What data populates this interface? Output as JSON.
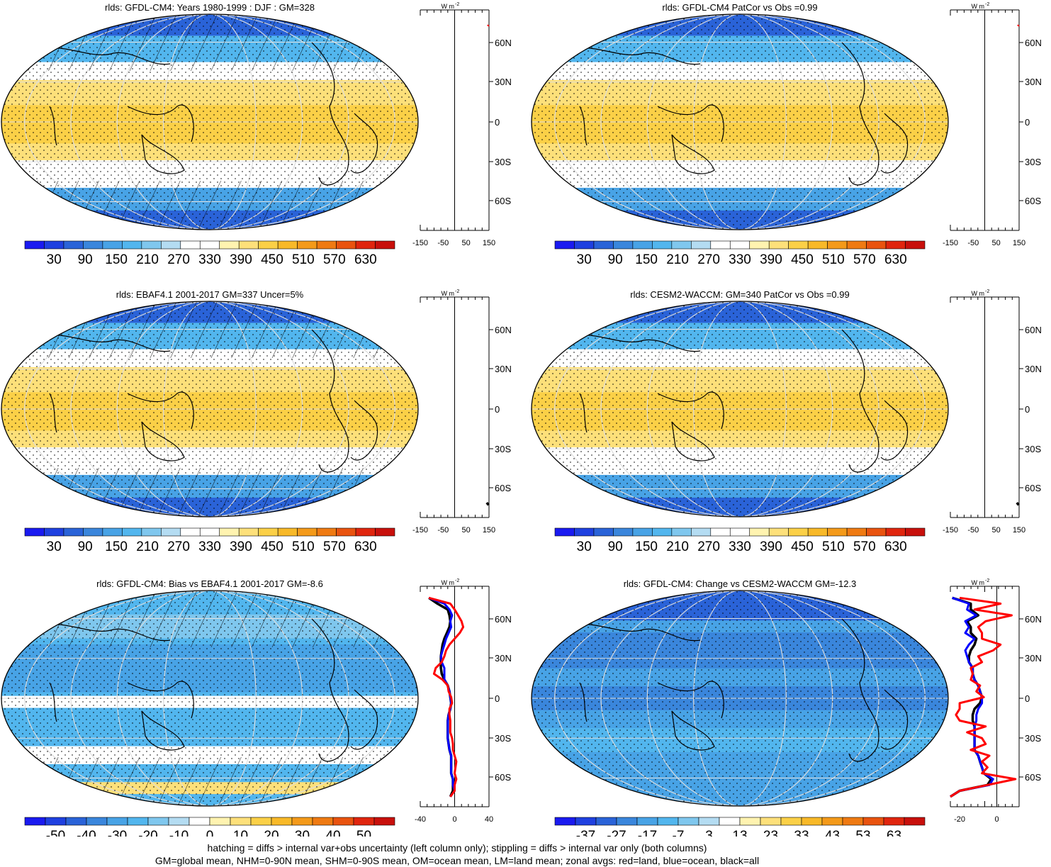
{
  "colors": {
    "abs_scale": [
      "#1a1af0",
      "#1f40e0",
      "#2a63d8",
      "#3a86dc",
      "#48a3e6",
      "#52b6ee",
      "#7fc7ee",
      "#b4dcf2",
      "#ffffff",
      "#ffffff",
      "#fff3b0",
      "#fde07a",
      "#fbd047",
      "#f8b928",
      "#f49a1a",
      "#ef7a12",
      "#e9530f",
      "#e0250e",
      "#c8100c"
    ],
    "bias_scale": [
      "#1a1af0",
      "#1f40e0",
      "#2a63d8",
      "#3a86dc",
      "#48a3e6",
      "#52b6ee",
      "#7fc7ee",
      "#b4dcf2",
      "#ffffff",
      "#fff3b0",
      "#fde07a",
      "#fbd047",
      "#f8b928",
      "#f49a1a",
      "#ef7a12",
      "#e9530f",
      "#e0250e",
      "#c8100c"
    ],
    "change_scale": [
      "#1a1af0",
      "#1f40e0",
      "#2a63d8",
      "#3a86dc",
      "#48a3e6",
      "#52b6ee",
      "#7fc7ee",
      "#b4dcf2",
      "#ffffff",
      "#fff3b0",
      "#fde07a",
      "#fbd047",
      "#f8b928",
      "#f49a1a",
      "#ef7a12",
      "#e9530f",
      "#e0250e",
      "#c8100c"
    ],
    "land": "#ff0000",
    "ocean": "#0000ff",
    "all": "#000000"
  },
  "chart_data": [
    {
      "type": "heatmap",
      "title": "rlds: GFDL-CM4: Years 1980-1999 : DJF : GM=328",
      "colorbar_labels": [
        "30",
        "90",
        "150",
        "210",
        "270",
        "330",
        "390",
        "450",
        "510",
        "570",
        "630"
      ],
      "colorbar_scale": "abs",
      "lat_labels": [
        "60N",
        "30N",
        "0",
        "30S",
        "60S"
      ],
      "zonal": {
        "unit": "W m-2",
        "x_ticks": [
          "-150",
          "-50",
          "50",
          "150"
        ],
        "xlim": [
          -150,
          150
        ],
        "lat": [
          82,
          81
        ],
        "land": [
          148,
          145
        ]
      }
    },
    {
      "type": "heatmap",
      "title": "rlds: GFDL-CM4 PatCor vs Obs =0.99",
      "colorbar_labels": [
        "30",
        "90",
        "150",
        "210",
        "270",
        "330",
        "390",
        "450",
        "510",
        "570",
        "630"
      ],
      "colorbar_scale": "abs",
      "lat_labels": [
        "60N",
        "30N",
        "0",
        "30S",
        "60S"
      ],
      "zonal": {
        "unit": "W m-2",
        "x_ticks": [
          "-150",
          "-50",
          "50",
          "150"
        ],
        "xlim": [
          -150,
          150
        ],
        "lat": [
          82,
          81
        ],
        "land": [
          148,
          145
        ]
      }
    },
    {
      "type": "heatmap",
      "title": "rlds: EBAF4.1 2001-2017 GM=337 Uncer=5%",
      "colorbar_labels": [
        "30",
        "90",
        "150",
        "210",
        "270",
        "330",
        "390",
        "450",
        "510",
        "570",
        "630"
      ],
      "colorbar_scale": "abs",
      "lat_labels": [
        "60N",
        "30N",
        "0",
        "30S",
        "60S"
      ],
      "zonal": {
        "unit": "W m-2",
        "x_ticks": [
          "-150",
          "-50",
          "50",
          "150"
        ],
        "xlim": [
          -150,
          150
        ],
        "lat": [
          -83,
          -81
        ],
        "all": [
          148,
          140
        ]
      }
    },
    {
      "type": "heatmap",
      "title": "rlds: CESM2-WACCM: GM=340 PatCor vs Obs =0.99",
      "colorbar_labels": [
        "30",
        "90",
        "150",
        "210",
        "270",
        "330",
        "390",
        "450",
        "510",
        "570",
        "630"
      ],
      "colorbar_scale": "abs",
      "lat_labels": [
        "60N",
        "30N",
        "0",
        "30S",
        "60S"
      ],
      "zonal": {
        "unit": "W m-2",
        "x_ticks": [
          "-150",
          "-50",
          "50",
          "150"
        ],
        "xlim": [
          -150,
          150
        ],
        "lat": [
          -83,
          -81
        ],
        "all": [
          148,
          140
        ]
      }
    },
    {
      "type": "heatmap",
      "title": "rlds: GFDL-CM4: Bias vs EBAF4.1 2001-2017 GM=-8.6",
      "colorbar_labels": [
        "-50",
        "-40",
        "-30",
        "-20",
        "-10",
        "0",
        "10",
        "20",
        "30",
        "40",
        "50"
      ],
      "colorbar_scale": "bias",
      "lat_labels": [
        "60N",
        "30N",
        "0",
        "30S",
        "60S"
      ],
      "zonal": {
        "unit": "W m-2",
        "x_ticks": [
          "-40",
          "0",
          "40"
        ],
        "xlim": [
          -40,
          40
        ],
        "lat": [
          85,
          80,
          75,
          70,
          65,
          60,
          55,
          50,
          45,
          40,
          35,
          30,
          25,
          20,
          15,
          10,
          5,
          0,
          -5,
          -10,
          -15,
          -20,
          -25,
          -30,
          -35,
          -40,
          -45,
          -50,
          -55,
          -60,
          -65,
          -70,
          -75,
          -80,
          -85
        ],
        "land": [
          -30,
          -5,
          0,
          4,
          8,
          10,
          6,
          0,
          -6,
          -10,
          -12,
          -15,
          -22,
          -24,
          -14,
          -8,
          -7,
          -4,
          -3,
          -6,
          -6,
          -5,
          -5,
          -5,
          -3,
          -2,
          -2,
          0,
          2,
          1,
          0,
          2,
          0,
          0,
          -5
        ],
        "ocean": [
          -30,
          -12,
          -6,
          -3,
          -5,
          -4,
          -7,
          -10,
          -12,
          -14,
          -16,
          -15,
          -12,
          -12,
          -12,
          -8,
          -6,
          -5,
          -4,
          -5,
          -7,
          -8,
          -8,
          -8,
          -8,
          -7,
          -6,
          -4,
          -4,
          -4,
          -4,
          -2,
          -2,
          0,
          -5
        ],
        "all": [
          -30,
          -20,
          -8,
          -6,
          -5,
          -6,
          -9,
          -12,
          -14,
          -15,
          -16,
          -16,
          -16,
          -15,
          -12,
          -8,
          -6,
          -5,
          -4,
          -5,
          -7,
          -8,
          -8,
          -8,
          -8,
          -7,
          -6,
          -4,
          -4,
          -4,
          -4,
          -2,
          -2,
          -2,
          -5
        ]
      }
    },
    {
      "type": "heatmap",
      "title": "rlds: GFDL-CM4: Change vs CESM2-WACCM GM=-12.3",
      "colorbar_labels": [
        "-37",
        "-27",
        "-17",
        "-7",
        "3",
        "13",
        "23",
        "33",
        "43",
        "53",
        "63"
      ],
      "colorbar_scale": "change",
      "lat_labels": [
        "60N",
        "30N",
        "0",
        "30S",
        "60S"
      ],
      "zonal": {
        "unit": "W m-2",
        "x_ticks": [
          "-20",
          "0"
        ],
        "xlim": [
          -25,
          12
        ],
        "lat": [
          85,
          80,
          75,
          70,
          65,
          60,
          55,
          50,
          45,
          40,
          35,
          30,
          25,
          20,
          15,
          10,
          5,
          0,
          -5,
          -10,
          -15,
          -20,
          -25,
          -30,
          -35,
          -40,
          -45,
          -50,
          -55,
          -60,
          -65,
          -70,
          -75,
          -80,
          -85
        ],
        "land": [
          -20,
          2,
          -12,
          8,
          -6,
          -10,
          -8,
          -8,
          2,
          -2,
          -10,
          -8,
          -14,
          -13,
          -14,
          -9,
          -11,
          -7,
          -20,
          -20,
          -22,
          -20,
          -6,
          -16,
          -8,
          -6,
          -14,
          -4,
          -8,
          -5,
          -8,
          10,
          -5,
          -20,
          -25
        ],
        "ocean": [
          -24,
          -15,
          -16,
          -11,
          -17,
          -15,
          -17,
          -12,
          -15,
          -17,
          -16,
          -15,
          -13,
          -13,
          -12,
          -10,
          -9,
          -8,
          -8,
          -10,
          -11,
          -11,
          -12,
          -12,
          -12,
          -12,
          -12,
          -10,
          -9,
          -8,
          -7,
          -2,
          -4,
          -20,
          -25
        ],
        "all": [
          -24,
          -14,
          -14,
          -10,
          -16,
          -14,
          -14,
          -11,
          -12,
          -14,
          -15,
          -15,
          -13,
          -13,
          -12,
          -10,
          -9,
          -8,
          -9,
          -12,
          -13,
          -13,
          -12,
          -12,
          -12,
          -12,
          -12,
          -10,
          -9,
          -8,
          -7,
          -3,
          -5,
          -20,
          -25
        ]
      }
    }
  ],
  "footer": {
    "line1": "hatching = diffs > internal var+obs uncertainty (left column only); stippling = diffs > internal var only (both columns)",
    "line2": "GM=global mean, NHM=0-90N mean, SHM=0-90S mean, OM=ocean mean, LM=land mean; zonal avgs: red=land, blue=ocean, black=all"
  }
}
